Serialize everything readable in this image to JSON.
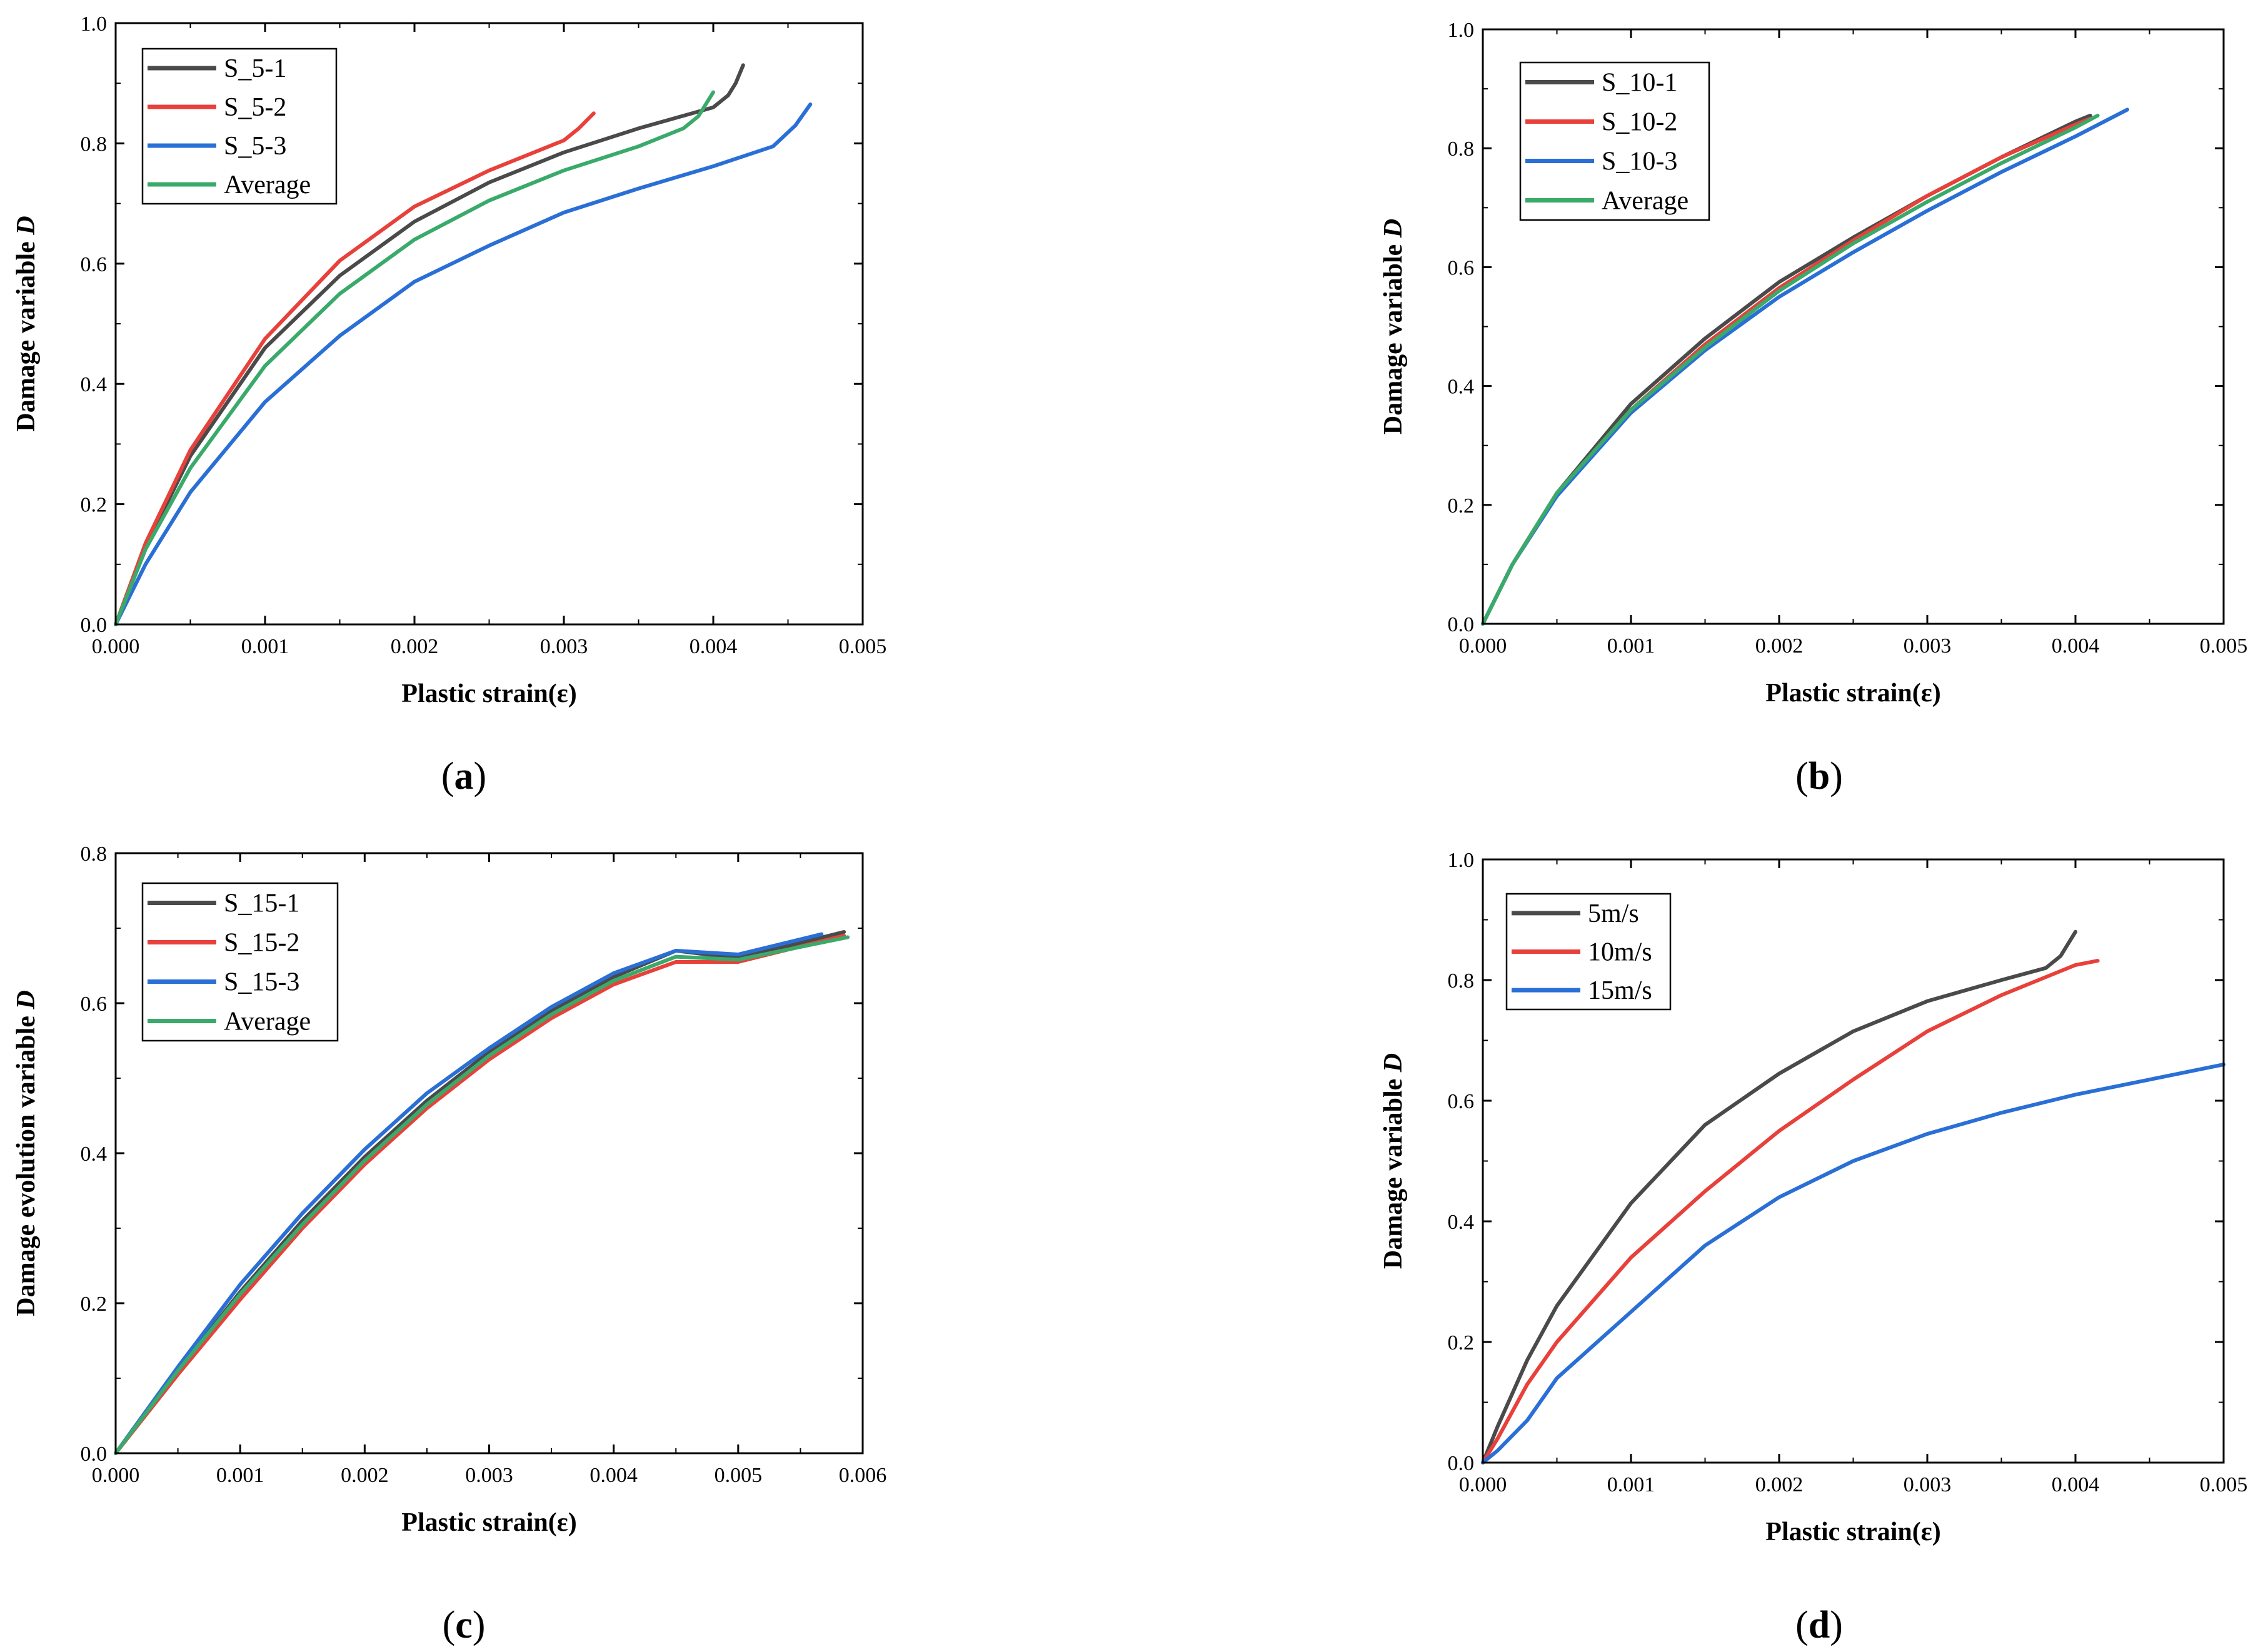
{
  "chart_data": [
    {
      "id": "a",
      "type": "line",
      "caption_letter": "a",
      "xlabel": "Plastic strain(ε)",
      "ylabel": "Damage variable ",
      "ylabel_italic": "D",
      "xlim": [
        0,
        0.005
      ],
      "ylim": [
        0,
        1.0
      ],
      "xticks": [
        "0.000",
        "0.001",
        "0.002",
        "0.003",
        "0.004",
        "0.005"
      ],
      "yticks": [
        "0.0",
        "0.2",
        "0.4",
        "0.6",
        "0.8",
        "1.0"
      ],
      "legend_position": "top-left",
      "series": [
        {
          "name": "S_5-1",
          "color": "#4a4a4a",
          "points": [
            [
              0,
              0
            ],
            [
              0.0002,
              0.13
            ],
            [
              0.0005,
              0.28
            ],
            [
              0.001,
              0.46
            ],
            [
              0.0015,
              0.58
            ],
            [
              0.002,
              0.67
            ],
            [
              0.0025,
              0.735
            ],
            [
              0.003,
              0.785
            ],
            [
              0.0035,
              0.825
            ],
            [
              0.004,
              0.86
            ],
            [
              0.0041,
              0.88
            ],
            [
              0.00415,
              0.9
            ],
            [
              0.0042,
              0.93
            ]
          ]
        },
        {
          "name": "S_5-2",
          "color": "#e8403a",
          "points": [
            [
              0,
              0
            ],
            [
              0.0002,
              0.135
            ],
            [
              0.0005,
              0.29
            ],
            [
              0.001,
              0.475
            ],
            [
              0.0015,
              0.605
            ],
            [
              0.002,
              0.695
            ],
            [
              0.0025,
              0.755
            ],
            [
              0.0029,
              0.795
            ],
            [
              0.003,
              0.805
            ],
            [
              0.0031,
              0.825
            ],
            [
              0.0032,
              0.85
            ]
          ]
        },
        {
          "name": "S_5-3",
          "color": "#2a6fd6",
          "points": [
            [
              0,
              0
            ],
            [
              0.0002,
              0.1
            ],
            [
              0.0005,
              0.22
            ],
            [
              0.001,
              0.37
            ],
            [
              0.0015,
              0.48
            ],
            [
              0.002,
              0.57
            ],
            [
              0.0025,
              0.63
            ],
            [
              0.003,
              0.685
            ],
            [
              0.0035,
              0.725
            ],
            [
              0.004,
              0.762
            ],
            [
              0.0044,
              0.795
            ],
            [
              0.00455,
              0.83
            ],
            [
              0.00465,
              0.865
            ]
          ]
        },
        {
          "name": "Average",
          "color": "#3aaa6a",
          "points": [
            [
              0,
              0
            ],
            [
              0.0002,
              0.125
            ],
            [
              0.0005,
              0.26
            ],
            [
              0.001,
              0.43
            ],
            [
              0.0015,
              0.55
            ],
            [
              0.002,
              0.64
            ],
            [
              0.0025,
              0.705
            ],
            [
              0.003,
              0.755
            ],
            [
              0.0035,
              0.795
            ],
            [
              0.0038,
              0.825
            ],
            [
              0.0039,
              0.845
            ],
            [
              0.004,
              0.885
            ]
          ]
        }
      ]
    },
    {
      "id": "b",
      "type": "line",
      "caption_letter": "b",
      "xlabel": "Plastic strain(ε)",
      "ylabel": "Damage variable ",
      "ylabel_italic": "D",
      "xlim": [
        0,
        0.005
      ],
      "ylim": [
        0,
        1.0
      ],
      "xticks": [
        "0.000",
        "0.001",
        "0.002",
        "0.003",
        "0.004",
        "0.005"
      ],
      "yticks": [
        "0.0",
        "0.2",
        "0.4",
        "0.6",
        "0.8",
        "1.0"
      ],
      "legend_position": "top-left",
      "series": [
        {
          "name": "S_10-1",
          "color": "#4a4a4a",
          "points": [
            [
              0,
              0
            ],
            [
              0.0002,
              0.1
            ],
            [
              0.0005,
              0.22
            ],
            [
              0.001,
              0.37
            ],
            [
              0.0015,
              0.48
            ],
            [
              0.002,
              0.575
            ],
            [
              0.0025,
              0.65
            ],
            [
              0.003,
              0.72
            ],
            [
              0.0035,
              0.785
            ],
            [
              0.004,
              0.845
            ],
            [
              0.0041,
              0.855
            ]
          ]
        },
        {
          "name": "S_10-2",
          "color": "#e8403a",
          "points": [
            [
              0,
              0
            ],
            [
              0.0002,
              0.1
            ],
            [
              0.0005,
              0.22
            ],
            [
              0.001,
              0.36
            ],
            [
              0.0015,
              0.47
            ],
            [
              0.002,
              0.565
            ],
            [
              0.0025,
              0.645
            ],
            [
              0.003,
              0.72
            ],
            [
              0.0035,
              0.785
            ],
            [
              0.004,
              0.84
            ],
            [
              0.0041,
              0.85
            ]
          ]
        },
        {
          "name": "S_10-3",
          "color": "#2a6fd6",
          "points": [
            [
              0,
              0
            ],
            [
              0.0002,
              0.1
            ],
            [
              0.0005,
              0.215
            ],
            [
              0.001,
              0.355
            ],
            [
              0.0015,
              0.46
            ],
            [
              0.002,
              0.55
            ],
            [
              0.0025,
              0.625
            ],
            [
              0.003,
              0.695
            ],
            [
              0.0035,
              0.76
            ],
            [
              0.004,
              0.82
            ],
            [
              0.00435,
              0.865
            ]
          ]
        },
        {
          "name": "Average",
          "color": "#3aaa6a",
          "points": [
            [
              0,
              0
            ],
            [
              0.0002,
              0.1
            ],
            [
              0.0005,
              0.22
            ],
            [
              0.001,
              0.36
            ],
            [
              0.0015,
              0.465
            ],
            [
              0.002,
              0.56
            ],
            [
              0.0025,
              0.64
            ],
            [
              0.003,
              0.71
            ],
            [
              0.0035,
              0.775
            ],
            [
              0.004,
              0.835
            ],
            [
              0.00415,
              0.855
            ]
          ]
        }
      ]
    },
    {
      "id": "c",
      "type": "line",
      "caption_letter": "c",
      "xlabel": "Plastic strain(ε)",
      "ylabel": "Damage evolution variable ",
      "ylabel_italic": "D",
      "xlim": [
        0,
        0.006
      ],
      "ylim": [
        0,
        0.8
      ],
      "xticks": [
        "0.000",
        "0.001",
        "0.002",
        "0.003",
        "0.004",
        "0.005",
        "0.006"
      ],
      "yticks": [
        "0.0",
        "0.2",
        "0.4",
        "0.6",
        "0.8"
      ],
      "legend_position": "top-left",
      "series": [
        {
          "name": "S_15-1",
          "color": "#4a4a4a",
          "points": [
            [
              0,
              0
            ],
            [
              0.0005,
              0.11
            ],
            [
              0.001,
              0.215
            ],
            [
              0.0015,
              0.31
            ],
            [
              0.002,
              0.395
            ],
            [
              0.0025,
              0.47
            ],
            [
              0.003,
              0.535
            ],
            [
              0.0035,
              0.59
            ],
            [
              0.004,
              0.635
            ],
            [
              0.0045,
              0.67
            ],
            [
              0.005,
              0.66
            ],
            [
              0.00585,
              0.695
            ]
          ]
        },
        {
          "name": "S_15-2",
          "color": "#e8403a",
          "points": [
            [
              0,
              0
            ],
            [
              0.0005,
              0.105
            ],
            [
              0.001,
              0.205
            ],
            [
              0.0015,
              0.3
            ],
            [
              0.002,
              0.385
            ],
            [
              0.0025,
              0.46
            ],
            [
              0.003,
              0.525
            ],
            [
              0.0035,
              0.58
            ],
            [
              0.004,
              0.625
            ],
            [
              0.0045,
              0.655
            ],
            [
              0.005,
              0.655
            ],
            [
              0.00585,
              0.69
            ]
          ]
        },
        {
          "name": "S_15-3",
          "color": "#2a6fd6",
          "points": [
            [
              0,
              0
            ],
            [
              0.0005,
              0.115
            ],
            [
              0.001,
              0.225
            ],
            [
              0.0015,
              0.32
            ],
            [
              0.002,
              0.405
            ],
            [
              0.0025,
              0.48
            ],
            [
              0.003,
              0.54
            ],
            [
              0.0035,
              0.595
            ],
            [
              0.004,
              0.64
            ],
            [
              0.0045,
              0.67
            ],
            [
              0.005,
              0.665
            ],
            [
              0.00567,
              0.692
            ]
          ]
        },
        {
          "name": "Average",
          "color": "#3aaa6a",
          "points": [
            [
              0,
              0
            ],
            [
              0.0005,
              0.11
            ],
            [
              0.001,
              0.212
            ],
            [
              0.0015,
              0.305
            ],
            [
              0.002,
              0.39
            ],
            [
              0.0025,
              0.465
            ],
            [
              0.003,
              0.53
            ],
            [
              0.0035,
              0.585
            ],
            [
              0.004,
              0.63
            ],
            [
              0.0045,
              0.662
            ],
            [
              0.005,
              0.658
            ],
            [
              0.00588,
              0.688
            ]
          ]
        }
      ]
    },
    {
      "id": "d",
      "type": "line",
      "caption_letter": "d",
      "xlabel": "Plastic strain(ε)",
      "ylabel": "Damage variable ",
      "ylabel_italic": "D",
      "xlim": [
        0,
        0.005
      ],
      "ylim": [
        0,
        1.0
      ],
      "xticks": [
        "0.000",
        "0.001",
        "0.002",
        "0.003",
        "0.004",
        "0.005"
      ],
      "yticks": [
        "0.0",
        "0.2",
        "0.4",
        "0.6",
        "0.8",
        "1.0"
      ],
      "legend_position": "top-left",
      "series": [
        {
          "name": "5m/s",
          "color": "#4a4a4a",
          "points": [
            [
              0,
              0
            ],
            [
              0.0001,
              0.06
            ],
            [
              0.0003,
              0.17
            ],
            [
              0.0005,
              0.26
            ],
            [
              0.001,
              0.43
            ],
            [
              0.0015,
              0.56
            ],
            [
              0.002,
              0.645
            ],
            [
              0.0025,
              0.715
            ],
            [
              0.003,
              0.765
            ],
            [
              0.0035,
              0.8
            ],
            [
              0.0038,
              0.82
            ],
            [
              0.0039,
              0.84
            ],
            [
              0.004,
              0.88
            ]
          ]
        },
        {
          "name": "10m/s",
          "color": "#e8403a",
          "points": [
            [
              0,
              0
            ],
            [
              0.0001,
              0.04
            ],
            [
              0.0003,
              0.13
            ],
            [
              0.0005,
              0.2
            ],
            [
              0.001,
              0.34
            ],
            [
              0.0015,
              0.45
            ],
            [
              0.002,
              0.55
            ],
            [
              0.0025,
              0.635
            ],
            [
              0.003,
              0.715
            ],
            [
              0.0035,
              0.775
            ],
            [
              0.004,
              0.825
            ],
            [
              0.00415,
              0.832
            ]
          ]
        },
        {
          "name": "15m/s",
          "color": "#2a6fd6",
          "points": [
            [
              0,
              0
            ],
            [
              0.0001,
              0.02
            ],
            [
              0.0003,
              0.07
            ],
            [
              0.0005,
              0.14
            ],
            [
              0.001,
              0.25
            ],
            [
              0.0015,
              0.36
            ],
            [
              0.002,
              0.44
            ],
            [
              0.0025,
              0.5
            ],
            [
              0.003,
              0.545
            ],
            [
              0.0035,
              0.58
            ],
            [
              0.004,
              0.61
            ],
            [
              0.0045,
              0.635
            ],
            [
              0.005,
              0.66
            ]
          ]
        }
      ]
    }
  ]
}
